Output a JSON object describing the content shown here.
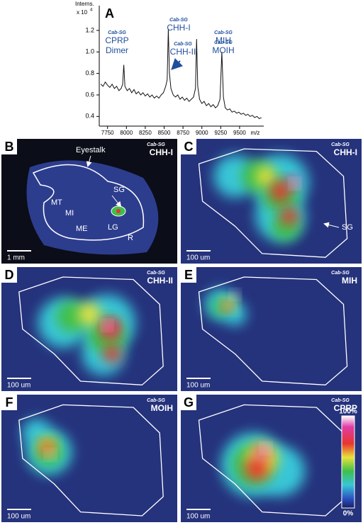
{
  "chart_data": {
    "type": "line",
    "panel": "A",
    "y_unit_label": "Interns.",
    "y_unit": "x 10",
    "y_unit_exp": "4",
    "x_label": "m/z",
    "x": [
      7660,
      7690,
      7720,
      7750,
      7780,
      7810,
      7840,
      7870,
      7900,
      7930,
      7950,
      7965,
      7980,
      8010,
      8040,
      8070,
      8100,
      8130,
      8160,
      8190,
      8220,
      8250,
      8280,
      8310,
      8340,
      8370,
      8400,
      8430,
      8460,
      8490,
      8520,
      8540,
      8555,
      8570,
      8590,
      8620,
      8650,
      8680,
      8710,
      8740,
      8770,
      8800,
      8830,
      8860,
      8890,
      8915,
      8930,
      8945,
      8970,
      9000,
      9030,
      9060,
      9090,
      9120,
      9150,
      9180,
      9210,
      9240,
      9265,
      9285,
      9310,
      9340,
      9370,
      9400,
      9430,
      9460,
      9490,
      9520,
      9550,
      9580,
      9610,
      9640,
      9670,
      9700,
      9730,
      9760,
      9790
    ],
    "series": [
      {
        "color": "#111111",
        "values": [
          0.7,
          0.68,
          0.72,
          0.69,
          0.67,
          0.7,
          0.66,
          0.68,
          0.64,
          0.66,
          0.7,
          0.88,
          0.68,
          0.64,
          0.66,
          0.62,
          0.65,
          0.61,
          0.63,
          0.6,
          0.62,
          0.59,
          0.61,
          0.58,
          0.6,
          0.57,
          0.59,
          0.57,
          0.6,
          0.62,
          0.68,
          0.74,
          1.21,
          0.8,
          0.66,
          0.6,
          0.58,
          0.6,
          0.56,
          0.58,
          0.55,
          0.57,
          0.54,
          0.56,
          0.58,
          0.66,
          1.12,
          0.68,
          0.56,
          0.52,
          0.54,
          0.5,
          0.52,
          0.49,
          0.51,
          0.48,
          0.5,
          0.56,
          1.0,
          0.58,
          0.48,
          0.46,
          0.47,
          0.44,
          0.45,
          0.43,
          0.44,
          0.42,
          0.43,
          0.41,
          0.42,
          0.4,
          0.41,
          0.39,
          0.4,
          0.38,
          0.39
        ]
      }
    ],
    "xlim": [
      7640,
      9820
    ],
    "ylim": [
      0.31,
      1.43
    ],
    "xticks": [
      7750,
      8000,
      8250,
      8500,
      8750,
      9000,
      9250,
      9500
    ],
    "yticks": [
      0.4,
      0.6,
      0.8,
      {
        "value": 1,
        "label": "1.0"
      },
      1.2
    ],
    "annotations": [
      {
        "prefix": "Cab-SG",
        "lines": [
          "CPRP",
          "Dimer"
        ]
      },
      {
        "prefix": "Cab-SG",
        "lines": [
          "CHH-I"
        ]
      },
      {
        "prefix": "Cab-SG",
        "lines": [
          "CHH-II"
        ]
      },
      {
        "prefix": "Cab-SG",
        "lines": [
          "MIH"
        ]
      },
      {
        "prefix": "Cab-SG",
        "lines": [
          "MOIH"
        ]
      }
    ]
  },
  "panels": [
    {
      "letter": "B",
      "prefix": "Cab-SG",
      "title": "CHH-I",
      "scale": "1 mm",
      "labels": [
        "Eyestalk",
        "SG",
        "MT",
        "MI",
        "ME",
        "LG",
        "R"
      ]
    },
    {
      "letter": "C",
      "prefix": "Cab-SG",
      "title": "CHH-I",
      "scale": "100 um",
      "labels": [
        "SG"
      ]
    },
    {
      "letter": "D",
      "prefix": "Cab-SG",
      "title": "CHH-II",
      "scale": "100 um",
      "labels": []
    },
    {
      "letter": "E",
      "prefix": "Cab-SG",
      "title": "MIH",
      "scale": "100 um",
      "labels": []
    },
    {
      "letter": "F",
      "prefix": "Cab-SG",
      "title": "MOIH",
      "scale": "100 um",
      "labels": []
    },
    {
      "letter": "G",
      "prefix": "Cab-SG",
      "title": "CPRP",
      "scale": "100 um",
      "labels": [],
      "colorbar": [
        "100%",
        "0%"
      ]
    }
  ]
}
